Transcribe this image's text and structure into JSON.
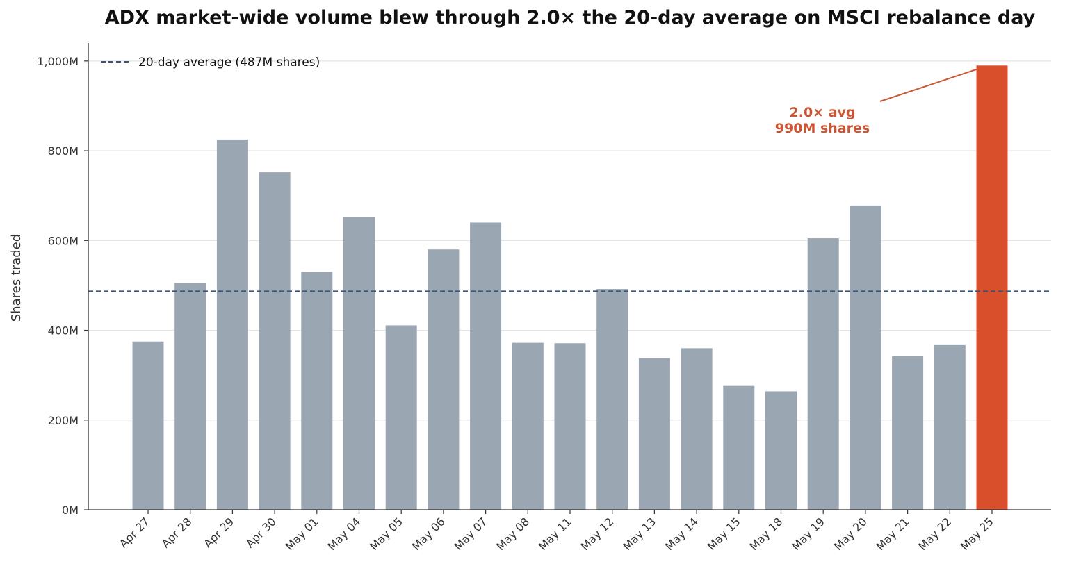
{
  "chart_data": {
    "type": "bar",
    "title": "ADX market-wide volume blew through 2.0× the 20-day average on MSCI rebalance day",
    "ylabel": "Shares traded",
    "xlabel": "",
    "ylim": [
      0,
      1040
    ],
    "y_ticks": [
      0,
      200,
      400,
      600,
      800,
      1000
    ],
    "y_tick_labels": [
      "0M",
      "200M",
      "400M",
      "600M",
      "800M",
      "1,000M"
    ],
    "grid": "horizontal",
    "categories": [
      "Apr 27",
      "Apr 28",
      "Apr 29",
      "Apr 30",
      "May 01",
      "May 04",
      "May 05",
      "May 06",
      "May 07",
      "May 08",
      "May 11",
      "May 12",
      "May 13",
      "May 14",
      "May 15",
      "May 18",
      "May 19",
      "May 20",
      "May 21",
      "May 22",
      "May 25"
    ],
    "values": [
      375,
      505,
      825,
      752,
      530,
      653,
      411,
      580,
      640,
      372,
      371,
      492,
      338,
      360,
      276,
      264,
      605,
      678,
      342,
      367,
      990
    ],
    "highlight_index": 20,
    "bar_color": "#9aa6b1",
    "highlight_color": "#d94e2b",
    "average": {
      "value": 487,
      "label": "20-day average (487M shares)",
      "color": "#3a5478"
    },
    "legend_position": "top-left",
    "annotation": {
      "line1": "2.0× avg",
      "line2": "990M shares",
      "color": "#cc5533",
      "target_index": 20
    }
  }
}
